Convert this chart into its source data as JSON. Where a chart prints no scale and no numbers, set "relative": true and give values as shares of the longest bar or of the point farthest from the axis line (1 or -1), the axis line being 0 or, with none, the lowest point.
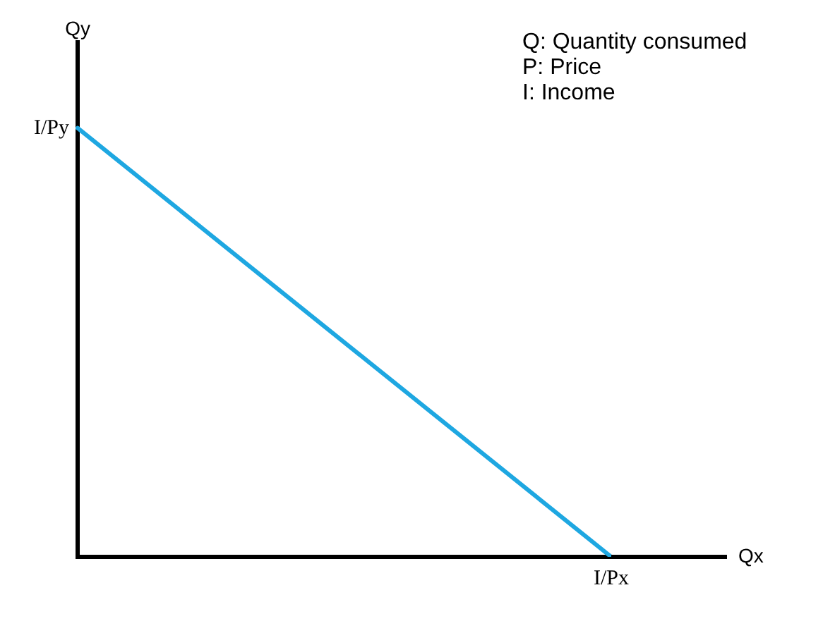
{
  "chart_data": {
    "type": "line",
    "xlabel": "Qx",
    "ylabel": "Qy",
    "relative": true,
    "annotations": [
      "Q: Quantity consumed",
      "P: Price",
      "I: Income",
      "I/Py",
      "I/Px"
    ],
    "categories": [
      null,
      null
    ],
    "series": [
      {
        "color": "#1ea7e1",
        "values": [
          1,
          0
        ]
      }
    ],
    "legend": false,
    "marker": "none",
    "line_style": "solid"
  }
}
